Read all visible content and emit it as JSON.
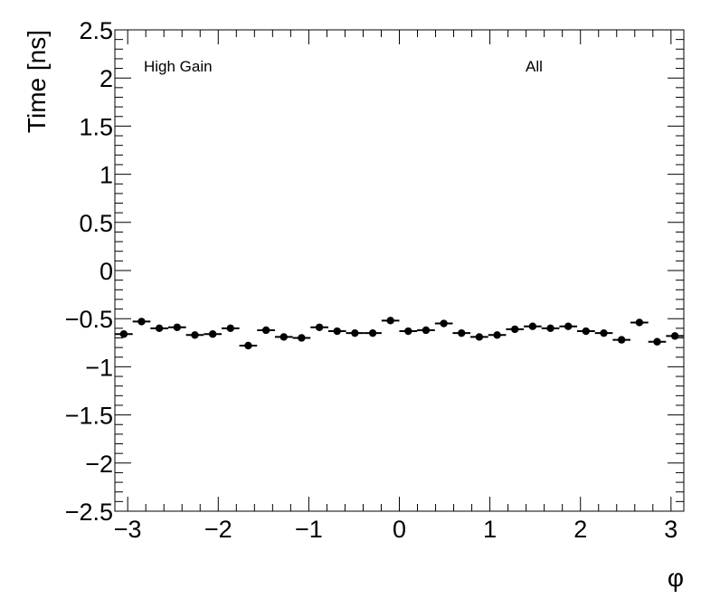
{
  "chart_data": {
    "type": "scatter",
    "title": "",
    "xlabel": "φ",
    "ylabel": "Time [ns]",
    "xlim": [
      -3.1416,
      3.1416
    ],
    "ylim": [
      -2.5,
      2.5
    ],
    "xticks": [
      -3,
      -2,
      -1,
      0,
      1,
      2,
      3
    ],
    "xtick_labels": [
      "−3",
      "−2",
      "−1",
      "0",
      "1",
      "2",
      "3"
    ],
    "yticks": [
      -2.5,
      -2,
      -1.5,
      -1,
      -0.5,
      0,
      0.5,
      1,
      1.5,
      2,
      2.5
    ],
    "ytick_labels": [
      "−2.5",
      "−2",
      "−1.5",
      "−1",
      "−0.5",
      "0",
      "0.5",
      "1",
      "1.5",
      "2",
      "2.5"
    ],
    "annotations": [
      "High Gain",
      "All"
    ],
    "grid": false,
    "marker_color": "#000000",
    "series": [
      {
        "x": [
          -3.043,
          -2.847,
          -2.651,
          -2.454,
          -2.258,
          -2.061,
          -1.865,
          -1.669,
          -1.472,
          -1.276,
          -1.08,
          -0.883,
          -0.687,
          -0.491,
          -0.294,
          -0.098,
          0.098,
          0.294,
          0.491,
          0.687,
          0.883,
          1.08,
          1.276,
          1.472,
          1.669,
          1.865,
          2.061,
          2.258,
          2.454,
          2.651,
          2.847,
          3.043
        ],
        "y": [
          -0.66,
          -0.53,
          -0.6,
          -0.59,
          -0.67,
          -0.66,
          -0.6,
          -0.78,
          -0.62,
          -0.69,
          -0.7,
          -0.59,
          -0.63,
          -0.65,
          -0.65,
          -0.52,
          -0.63,
          -0.62,
          -0.55,
          -0.65,
          -0.69,
          -0.67,
          -0.61,
          -0.58,
          -0.6,
          -0.58,
          -0.63,
          -0.65,
          -0.72,
          -0.54,
          -0.74,
          -0.68
        ],
        "xerr": 0.0982
      }
    ]
  }
}
